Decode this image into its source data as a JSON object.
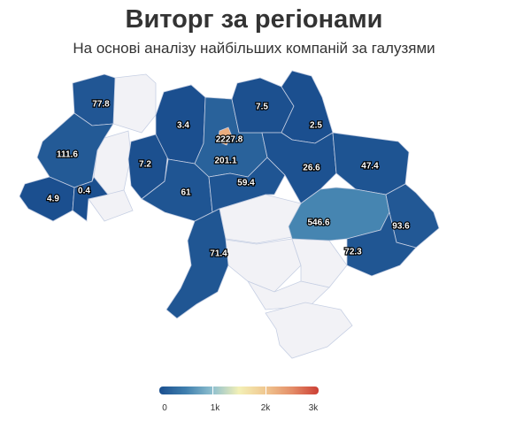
{
  "header": {
    "title": "Виторг за регіонами",
    "subtitle": "На основі аналізу найбільших компаній за галузями"
  },
  "map": {
    "regions": [
      {
        "id": "volyn",
        "value": 77.8,
        "label": "77.8"
      },
      {
        "id": "lviv",
        "value": 111.6,
        "label": "111.6"
      },
      {
        "id": "zakarpattia",
        "value": 4.9,
        "label": "4.9"
      },
      {
        "id": "ivano-frankivsk",
        "value": 0.4,
        "label": "0.4"
      },
      {
        "id": "rivne",
        "value": null,
        "label": ""
      },
      {
        "id": "ternopil",
        "value": null,
        "label": ""
      },
      {
        "id": "chernivtsi",
        "value": null,
        "label": ""
      },
      {
        "id": "khmelnytskyi",
        "value": 7.2,
        "label": "7.2"
      },
      {
        "id": "zhytomyr",
        "value": 3.4,
        "label": "3.4"
      },
      {
        "id": "vinnytsia",
        "value": 61,
        "label": "61"
      },
      {
        "id": "kyiv-oblast",
        "value": 201.1,
        "label": "201.1"
      },
      {
        "id": "kyiv-city",
        "value": 2227.8,
        "label": "2227.8"
      },
      {
        "id": "chernihiv",
        "value": 7.5,
        "label": "7.5"
      },
      {
        "id": "sumy",
        "value": 2.5,
        "label": "2.5"
      },
      {
        "id": "cherkasy",
        "value": 59.4,
        "label": "59.4"
      },
      {
        "id": "poltava",
        "value": 26.6,
        "label": "26.6"
      },
      {
        "id": "kharkiv",
        "value": 47.4,
        "label": "47.4"
      },
      {
        "id": "kirovohrad",
        "value": null,
        "label": ""
      },
      {
        "id": "dnipropetrovsk",
        "value": 546.6,
        "label": "546.6"
      },
      {
        "id": "luhansk",
        "value": 93.6,
        "label": "93.6"
      },
      {
        "id": "donetsk",
        "value": 72.3,
        "label": "72.3"
      },
      {
        "id": "odesa",
        "value": 71.4,
        "label": "71.4"
      },
      {
        "id": "mykolaiv",
        "value": null,
        "label": ""
      },
      {
        "id": "zaporizhzhia",
        "value": null,
        "label": ""
      },
      {
        "id": "kherson",
        "value": null,
        "label": ""
      },
      {
        "id": "crimea",
        "value": null,
        "label": ""
      }
    ],
    "no_data_color": "#f2f2f6"
  },
  "legend": {
    "ticks": [
      "0",
      "1k",
      "2k",
      "3k"
    ],
    "min": 0,
    "max": 3000,
    "colors": [
      "#1b4f8f",
      "#3f7fae",
      "#8fc0cf",
      "#f3f0b6",
      "#f0c790",
      "#e48d68",
      "#cc3f35"
    ]
  }
}
